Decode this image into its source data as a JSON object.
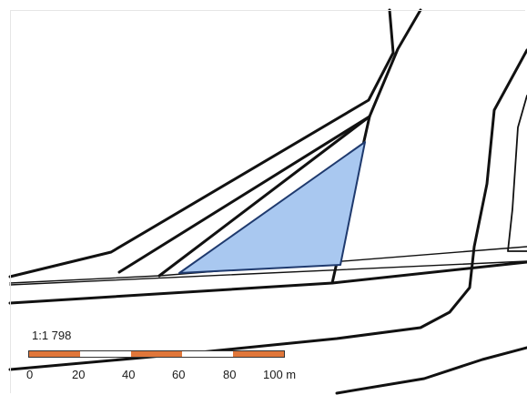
{
  "map": {
    "highlight_fill": "#a9c8f0",
    "highlight_stroke": "#1f3a6e",
    "line_color": "#111111",
    "background": "#ffffff"
  },
  "scale": {
    "ratio": "1:1 798",
    "segment_colors": [
      "#e0763a",
      "#ffffff",
      "#e0763a",
      "#ffffff",
      "#e0763a"
    ],
    "labels": [
      "0",
      "20",
      "40",
      "60",
      "80",
      "100 m"
    ]
  }
}
